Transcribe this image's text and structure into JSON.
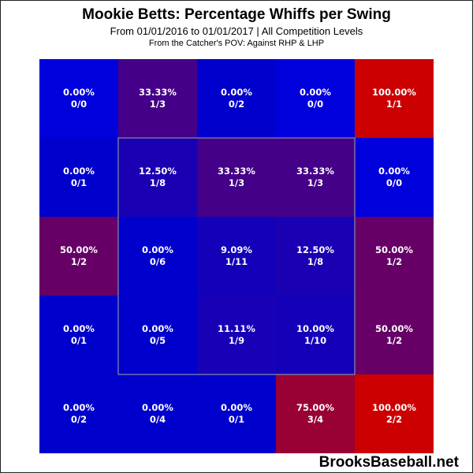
{
  "title": "Mookie Betts: Percentage Whiffs per Swing",
  "subtitle": "From 01/01/2016 to 01/01/2017 | All Competition Levels",
  "note": "From the Catcher's POV:  Against RHP & LHP",
  "watermark": "BrooksBaseball.net",
  "colors": {
    "low": "#0000cc",
    "high": "#cc0000",
    "strike_zone_outline": "#8a8aa8",
    "text": "#ffffff"
  },
  "chart_data": {
    "type": "heatmap",
    "rows": 5,
    "cols": 5,
    "strike_zone": {
      "rows": [
        1,
        3
      ],
      "cols": [
        1,
        3
      ]
    },
    "cells": [
      [
        {
          "pct": "0.00%",
          "frac": "0/0",
          "value": 0.0,
          "empty": true
        },
        {
          "pct": "33.33%",
          "frac": "1/3",
          "value": 33.33
        },
        {
          "pct": "0.00%",
          "frac": "0/2",
          "value": 0.0
        },
        {
          "pct": "0.00%",
          "frac": "0/0",
          "value": 0.0,
          "empty": true
        },
        {
          "pct": "100.00%",
          "frac": "1/1",
          "value": 100.0
        }
      ],
      [
        {
          "pct": "0.00%",
          "frac": "0/1",
          "value": 0.0
        },
        {
          "pct": "12.50%",
          "frac": "1/8",
          "value": 12.5
        },
        {
          "pct": "33.33%",
          "frac": "1/3",
          "value": 33.33
        },
        {
          "pct": "33.33%",
          "frac": "1/3",
          "value": 33.33
        },
        {
          "pct": "0.00%",
          "frac": "0/0",
          "value": 0.0,
          "empty": true
        }
      ],
      [
        {
          "pct": "50.00%",
          "frac": "1/2",
          "value": 50.0
        },
        {
          "pct": "0.00%",
          "frac": "0/6",
          "value": 0.0
        },
        {
          "pct": "9.09%",
          "frac": "1/11",
          "value": 9.09
        },
        {
          "pct": "12.50%",
          "frac": "1/8",
          "value": 12.5
        },
        {
          "pct": "50.00%",
          "frac": "1/2",
          "value": 50.0
        }
      ],
      [
        {
          "pct": "0.00%",
          "frac": "0/1",
          "value": 0.0
        },
        {
          "pct": "0.00%",
          "frac": "0/5",
          "value": 0.0
        },
        {
          "pct": "11.11%",
          "frac": "1/9",
          "value": 11.11
        },
        {
          "pct": "10.00%",
          "frac": "1/10",
          "value": 10.0
        },
        {
          "pct": "50.00%",
          "frac": "1/2",
          "value": 50.0
        }
      ],
      [
        {
          "pct": "0.00%",
          "frac": "0/2",
          "value": 0.0
        },
        {
          "pct": "0.00%",
          "frac": "0/4",
          "value": 0.0
        },
        {
          "pct": "0.00%",
          "frac": "0/1",
          "value": 0.0
        },
        {
          "pct": "75.00%",
          "frac": "3/4",
          "value": 75.0
        },
        {
          "pct": "100.00%",
          "frac": "2/2",
          "value": 100.0
        }
      ]
    ]
  }
}
